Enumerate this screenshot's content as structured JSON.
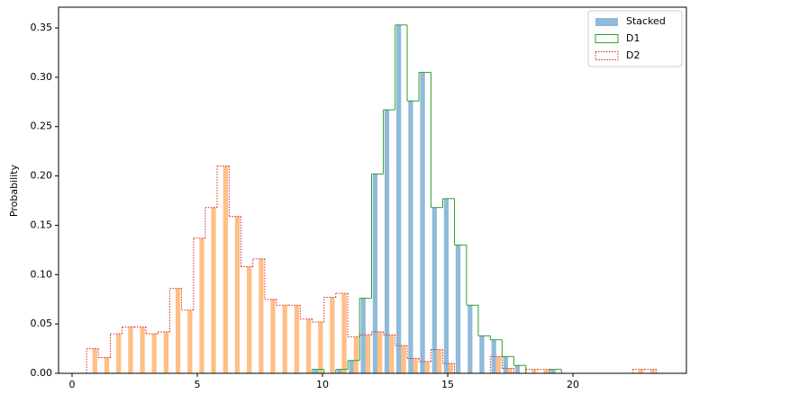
{
  "chart_data": {
    "type": "histogram",
    "ylabel": "Probability",
    "bins": [
      0.58,
      1.05,
      1.53,
      2.0,
      2.48,
      2.95,
      3.42,
      3.9,
      4.37,
      4.85,
      5.32,
      5.79,
      6.27,
      6.74,
      7.22,
      7.69,
      8.16,
      8.64,
      9.11,
      9.59,
      10.06,
      10.53,
      11.01,
      11.48,
      11.96,
      12.43,
      12.9,
      13.38,
      13.85,
      14.33,
      14.8,
      15.27,
      15.75,
      16.22,
      16.7,
      17.17,
      17.64,
      18.12,
      18.59,
      19.07,
      19.54,
      20.01,
      20.49,
      20.96,
      21.44,
      21.91,
      22.38,
      22.86,
      23.33
    ],
    "bar_label": "Stacked",
    "bar_colors": [
      "#8fbbd9",
      "#ffbf86"
    ],
    "series": [
      {
        "name": "D1",
        "color": "#2ca02c",
        "linestyle": "solid",
        "values": [
          0,
          0,
          0,
          0,
          0,
          0,
          0,
          0,
          0,
          0,
          0,
          0,
          0,
          0,
          0,
          0,
          0,
          0,
          0,
          0.004,
          0,
          0.004,
          0.013,
          0.076,
          0.202,
          0.267,
          0.353,
          0.276,
          0.305,
          0.168,
          0.177,
          0.13,
          0.069,
          0.038,
          0.034,
          0.017,
          0.008,
          0,
          0,
          0.004,
          0,
          0,
          0,
          0,
          0,
          0,
          0,
          0
        ]
      },
      {
        "name": "D2",
        "color": "#d62728",
        "linestyle": "dotted",
        "values": [
          0.025,
          0.016,
          0.04,
          0.047,
          0.047,
          0.04,
          0.042,
          0.086,
          0.064,
          0.137,
          0.168,
          0.21,
          0.159,
          0.108,
          0.116,
          0.075,
          0.069,
          0.069,
          0.055,
          0.052,
          0.077,
          0.081,
          0.037,
          0.039,
          0.042,
          0.039,
          0.028,
          0.015,
          0.012,
          0.024,
          0.01,
          0,
          0,
          0,
          0.017,
          0.005,
          0,
          0.004,
          0.004,
          0,
          0,
          0,
          0,
          0,
          0,
          0,
          0.004,
          0.004
        ]
      }
    ],
    "xlim": [
      -0.54,
      24.53
    ],
    "ylim": [
      0,
      0.371
    ],
    "xticks": [
      0,
      5,
      10,
      15,
      20
    ],
    "yticks": [
      {
        "value": 0,
        "label": "0.00"
      },
      0.05,
      {
        "value": 0.1,
        "label": "0.10"
      },
      0.15,
      {
        "value": 0.2,
        "label": "0.20"
      },
      0.25,
      {
        "value": 0.3,
        "label": "0.30"
      },
      0.35
    ],
    "legend": "upper right"
  }
}
